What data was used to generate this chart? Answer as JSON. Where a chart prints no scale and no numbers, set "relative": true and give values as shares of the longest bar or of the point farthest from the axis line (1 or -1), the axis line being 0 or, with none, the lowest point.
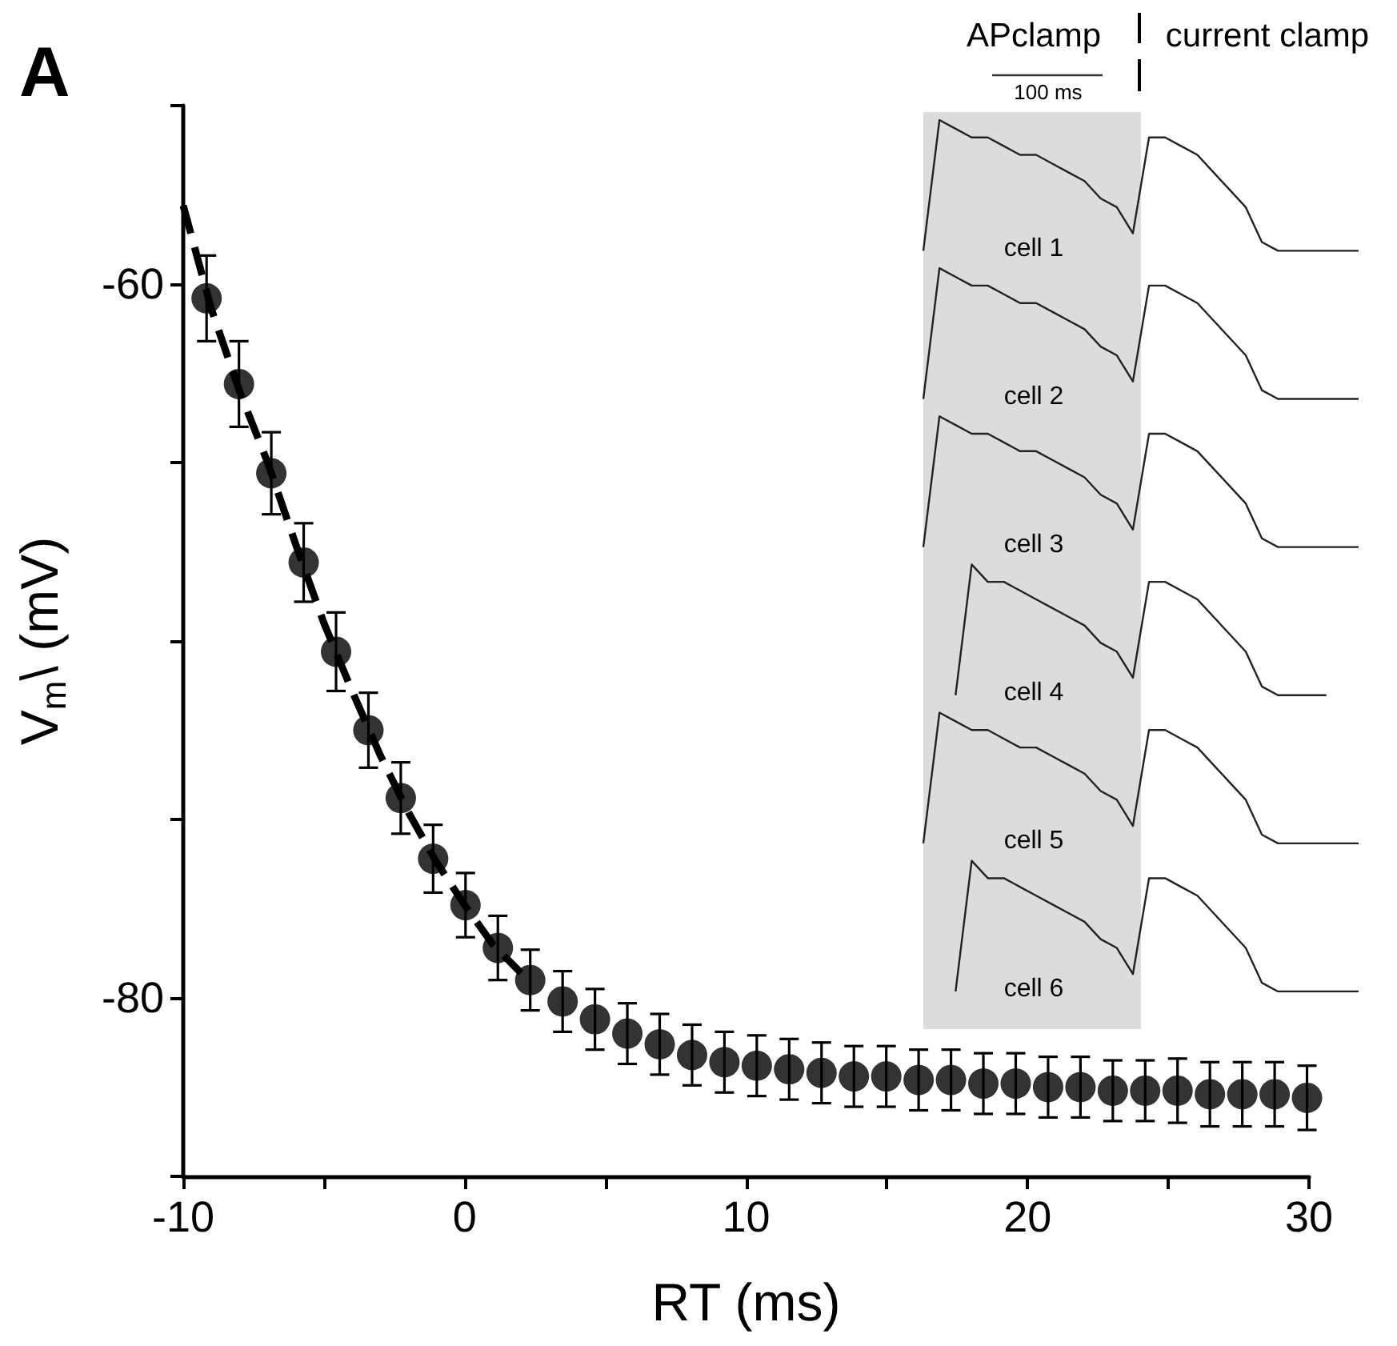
{
  "chart_data": [
    {
      "type": "scatter",
      "xlabel": "RT (ms)",
      "ylabel": "V$_{m}$\\ (mV)",
      "xlim": [
        -10,
        30
      ],
      "xticks": [
        -10,
        {
          "value": -5,
          "label": null
        },
        0,
        {
          "value": 5,
          "label": null
        },
        10,
        {
          "value": 15,
          "label": null
        },
        20,
        {
          "value": 25,
          "label": null
        },
        30
      ],
      "ylim": [
        -85,
        -55
      ],
      "yticks": [
        {
          "value": -85,
          "label": null
        },
        -80,
        {
          "value": -75,
          "label": null
        },
        {
          "value": -70,
          "label": null
        },
        {
          "value": -65,
          "label": null
        },
        -60,
        {
          "value": -55,
          "label": null
        }
      ],
      "annotations": [
        "A"
      ],
      "series": [
        {
          "color": "#000000",
          "marker": "circle",
          "x": [
            -9.17,
            -8.02,
            -6.87,
            -5.72,
            -4.57,
            -3.42,
            -2.27,
            -1.12,
            0.03,
            1.18,
            2.33,
            3.48,
            4.63,
            5.78,
            6.93,
            8.08,
            9.23,
            10.38,
            11.53,
            12.68,
            13.83,
            14.98,
            16.13,
            17.28,
            18.43,
            19.58,
            20.73,
            21.88,
            23.03,
            24.18,
            25.33,
            26.48,
            27.63,
            28.78,
            29.93
          ],
          "values": [
            -60.4,
            -62.8,
            -65.3,
            -67.8,
            -70.3,
            -72.5,
            -74.4,
            -76.1,
            -77.4,
            -78.6,
            -79.5,
            -80.1,
            -80.6,
            -81.0,
            -81.3,
            -81.6,
            -81.8,
            -81.9,
            -82.0,
            -82.1,
            -82.2,
            -82.2,
            -82.3,
            -82.3,
            -82.4,
            -82.4,
            -82.5,
            -82.5,
            -82.6,
            -82.6,
            -82.6,
            -82.7,
            -82.7,
            -82.7,
            -82.8
          ],
          "errors": [
            1.2,
            1.2,
            1.15,
            1.1,
            1.1,
            1.05,
            1.0,
            0.95,
            0.9,
            0.9,
            0.85,
            0.85,
            0.85,
            0.85,
            0.85,
            0.85,
            0.85,
            0.85,
            0.85,
            0.85,
            0.85,
            0.85,
            0.85,
            0.85,
            0.85,
            0.85,
            0.85,
            0.85,
            0.85,
            0.85,
            0.9,
            0.9,
            0.9,
            0.9,
            0.9
          ]
        },
        {
          "type": "line",
          "color": "#000000",
          "line_style": "dashed",
          "marker": "none",
          "x": [
            -10,
            -9,
            -8,
            -7,
            -6,
            -5,
            -4,
            -3,
            -2,
            -1,
            0,
            1,
            2
          ],
          "values": [
            -57.8,
            -60.7,
            -63.0,
            -65.0,
            -67.3,
            -69.5,
            -71.4,
            -73.2,
            -74.8,
            -76.2,
            -77.4,
            -78.5,
            -79.3
          ]
        }
      ]
    },
    {
      "type": "line",
      "relative": true,
      "annotations": [
        "APclamp",
        "current clamp",
        "100 ms",
        "cell 1",
        "cell 2",
        "cell 3",
        "cell 4",
        "cell 5",
        "cell 6"
      ],
      "categories": [
        null,
        null,
        null,
        null,
        null,
        null,
        null,
        null,
        null,
        null,
        null,
        null,
        null,
        null,
        null,
        null,
        null,
        null,
        null,
        null,
        null,
        null,
        null,
        null,
        null,
        null,
        null,
        null
      ],
      "series": [
        {
          "color": "#222222",
          "values": [
            0.85,
            1.0,
            0.99,
            0.98,
            0.98,
            0.97,
            0.96,
            0.96,
            0.95,
            0.94,
            0.93,
            0.91,
            0.9,
            0.87,
            0.98,
            0.98,
            0.97,
            0.96,
            0.94,
            0.92,
            0.9,
            0.86,
            0.85,
            0.85,
            0.85,
            0.85,
            0.85,
            0.85
          ]
        },
        {
          "color": "#222222",
          "values": [
            0.68,
            0.83,
            0.82,
            0.81,
            0.81,
            0.8,
            0.79,
            0.79,
            0.78,
            0.77,
            0.76,
            0.74,
            0.73,
            0.7,
            0.81,
            0.81,
            0.8,
            0.79,
            0.77,
            0.75,
            0.73,
            0.69,
            0.68,
            0.68,
            0.68,
            0.68,
            0.68,
            0.68
          ]
        },
        {
          "color": "#222222",
          "values": [
            0.51,
            0.66,
            0.65,
            0.64,
            0.64,
            0.63,
            0.62,
            0.62,
            0.61,
            0.6,
            0.59,
            0.57,
            0.56,
            0.53,
            0.64,
            0.64,
            0.63,
            0.62,
            0.6,
            0.58,
            0.56,
            0.52,
            0.51,
            0.51,
            0.51,
            0.51,
            0.51,
            0.51
          ]
        },
        {
          "color": "#222222",
          "values": [
            null,
            null,
            0.34,
            0.49,
            0.47,
            0.47,
            0.46,
            0.45,
            0.44,
            0.43,
            0.42,
            0.4,
            0.39,
            0.36,
            0.47,
            0.47,
            0.46,
            0.45,
            0.43,
            0.41,
            0.39,
            0.35,
            0.34,
            0.34,
            0.34,
            0.34,
            null,
            null
          ]
        },
        {
          "color": "#222222",
          "values": [
            0.17,
            0.32,
            0.31,
            0.3,
            0.3,
            0.29,
            0.28,
            0.28,
            0.27,
            0.26,
            0.25,
            0.23,
            0.22,
            0.19,
            0.3,
            0.3,
            0.29,
            0.28,
            0.26,
            0.24,
            0.22,
            0.18,
            0.17,
            0.17,
            0.17,
            0.17,
            0.17,
            0.17
          ]
        },
        {
          "color": "#222222",
          "values": [
            null,
            null,
            0.0,
            0.15,
            0.13,
            0.13,
            0.12,
            0.11,
            0.1,
            0.09,
            0.08,
            0.06,
            0.05,
            0.02,
            0.13,
            0.13,
            0.12,
            0.11,
            0.09,
            0.07,
            0.05,
            0.01,
            0.0,
            0.0,
            0.0,
            0.0,
            0.0,
            0.0
          ]
        }
      ]
    }
  ]
}
